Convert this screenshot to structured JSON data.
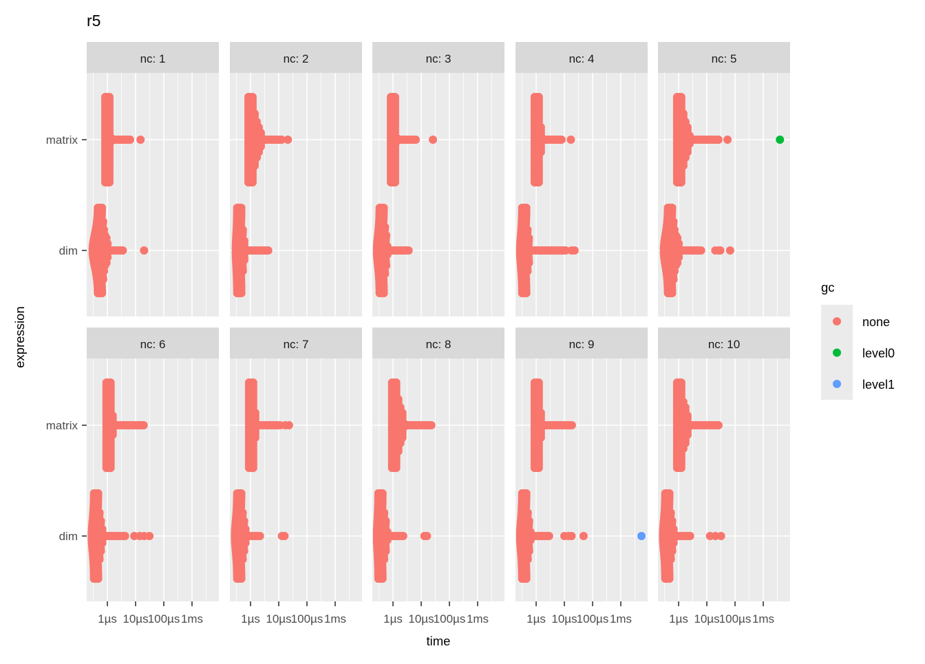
{
  "chart_data": {
    "type": "scatter",
    "title": "r5",
    "xlabel": "time",
    "ylabel": "expression",
    "x_scale": "log10",
    "x_unit": "µs",
    "xlim_us": [
      0.19,
      8900
    ],
    "x_ticks": [
      {
        "value_us": 1,
        "label": "1µs"
      },
      {
        "value_us": 10,
        "label": "10µs"
      },
      {
        "value_us": 100,
        "label": "100µs"
      },
      {
        "value_us": 1000,
        "label": "1ms"
      }
    ],
    "y_categories": [
      "matrix",
      "dim"
    ],
    "grid": true,
    "legend": {
      "title": "gc",
      "position": "right",
      "items": [
        {
          "label": "none",
          "color": "#F8766D"
        },
        {
          "label": "level0",
          "color": "#00BA38"
        },
        {
          "label": "level1",
          "color": "#619CFF"
        }
      ]
    },
    "facets": [
      {
        "label": "nc: 1",
        "matrix": {
          "spine_us": 1.0,
          "bulk_hi_us": 1.4,
          "tail_us": 6.4,
          "outliers": [
            {
              "us": 15,
              "gc": "none"
            }
          ]
        },
        "dim": {
          "spine_us": 0.55,
          "bulk_lo_us": 0.3,
          "bulk_hi_us": 1.1,
          "tail_us": 4.0,
          "outliers": [
            {
              "us": 20,
              "gc": "none"
            }
          ]
        }
      },
      {
        "label": "nc: 2",
        "matrix": {
          "spine_us": 1.0,
          "bulk_hi_us": 2.5,
          "tail_us": 13,
          "outliers": [
            {
              "us": 21,
              "gc": "none"
            }
          ]
        },
        "dim": {
          "spine_us": 0.4,
          "bulk_lo_us": 0.3,
          "bulk_hi_us": 0.65,
          "tail_us": 4.3,
          "outliers": []
        }
      },
      {
        "label": "nc: 3",
        "matrix": {
          "spine_us": 1.0,
          "bulk_hi_us": 1.4,
          "tail_us": 6.8,
          "outliers": [
            {
              "us": 26,
              "gc": "none"
            }
          ]
        },
        "dim": {
          "spine_us": 0.4,
          "bulk_lo_us": 0.27,
          "bulk_hi_us": 0.65,
          "tail_us": 3.6,
          "outliers": []
        }
      },
      {
        "label": "nc: 4",
        "matrix": {
          "spine_us": 1.05,
          "bulk_hi_us": 1.6,
          "tail_us": 9,
          "outliers": [
            {
              "us": 17,
              "gc": "none"
            }
          ]
        },
        "dim": {
          "spine_us": 0.38,
          "bulk_lo_us": 0.27,
          "bulk_hi_us": 0.6,
          "tail_us": 12,
          "outliers": [
            {
              "us": 18,
              "gc": "none"
            },
            {
              "us": 23,
              "gc": "none"
            }
          ]
        }
      },
      {
        "label": "nc: 5",
        "matrix": {
          "spine_us": 1.05,
          "bulk_hi_us": 2.5,
          "tail_us": 30,
          "outliers": [
            {
              "us": 54,
              "gc": "none"
            },
            {
              "us": 3900,
              "gc": "level0"
            }
          ]
        },
        "dim": {
          "spine_us": 0.5,
          "bulk_lo_us": 0.3,
          "bulk_hi_us": 1.1,
          "tail_us": 6.4,
          "outliers": [
            {
              "us": 20,
              "gc": "none"
            },
            {
              "us": 26,
              "gc": "none"
            },
            {
              "us": 30,
              "gc": "none"
            },
            {
              "us": 67,
              "gc": "none"
            }
          ]
        }
      },
      {
        "label": "nc: 6",
        "matrix": {
          "spine_us": 1.1,
          "bulk_hi_us": 1.6,
          "tail_us": 22,
          "outliers": []
        },
        "dim": {
          "spine_us": 0.4,
          "bulk_lo_us": 0.28,
          "bulk_hi_us": 0.7,
          "tail_us": 4.8,
          "outliers": [
            {
              "us": 9,
              "gc": "none"
            },
            {
              "us": 14,
              "gc": "none"
            },
            {
              "us": 20,
              "gc": "none"
            },
            {
              "us": 31,
              "gc": "none"
            }
          ]
        }
      },
      {
        "label": "nc: 7",
        "matrix": {
          "spine_us": 1.05,
          "bulk_hi_us": 1.6,
          "tail_us": 12,
          "outliers": [
            {
              "us": 17,
              "gc": "none"
            },
            {
              "us": 23,
              "gc": "none"
            }
          ]
        },
        "dim": {
          "spine_us": 0.4,
          "bulk_lo_us": 0.28,
          "bulk_hi_us": 0.7,
          "tail_us": 2.5,
          "outliers": [
            {
              "us": 13,
              "gc": "none"
            },
            {
              "us": 16,
              "gc": "none"
            }
          ]
        }
      },
      {
        "label": "nc: 8",
        "matrix": {
          "spine_us": 1.1,
          "bulk_hi_us": 2.6,
          "tail_us": 23,
          "outliers": []
        },
        "dim": {
          "spine_us": 0.36,
          "bulk_lo_us": 0.27,
          "bulk_hi_us": 0.65,
          "tail_us": 2.6,
          "outliers": [
            {
              "us": 13,
              "gc": "none"
            },
            {
              "us": 16,
              "gc": "none"
            }
          ]
        }
      },
      {
        "label": "nc: 9",
        "matrix": {
          "spine_us": 1.05,
          "bulk_hi_us": 1.6,
          "tail_us": 20,
          "outliers": []
        },
        "dim": {
          "spine_us": 0.38,
          "bulk_lo_us": 0.27,
          "bulk_hi_us": 0.65,
          "tail_us": 2.9,
          "outliers": [
            {
              "us": 10,
              "gc": "none"
            },
            {
              "us": 14,
              "gc": "none"
            },
            {
              "us": 18,
              "gc": "none"
            },
            {
              "us": 48,
              "gc": "none"
            },
            {
              "us": 5400,
              "gc": "level1"
            }
          ]
        }
      },
      {
        "label": "nc: 10",
        "matrix": {
          "spine_us": 1.05,
          "bulk_hi_us": 2.4,
          "tail_us": 29,
          "outliers": []
        },
        "dim": {
          "spine_us": 0.4,
          "bulk_lo_us": 0.28,
          "bulk_hi_us": 0.7,
          "tail_us": 2.7,
          "outliers": [
            {
              "us": 13,
              "gc": "none"
            },
            {
              "us": 20,
              "gc": "none"
            },
            {
              "us": 32,
              "gc": "none"
            }
          ]
        }
      }
    ]
  },
  "colors": {
    "none": "#F8766D",
    "level0": "#00BA38",
    "level1": "#619CFF",
    "panel": "#EBEBEB",
    "strip": "#D9D9D9"
  }
}
